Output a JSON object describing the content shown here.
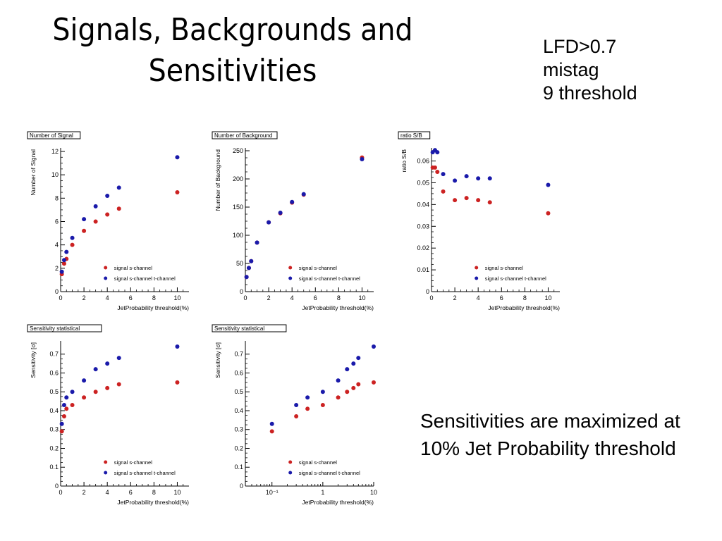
{
  "slide": {
    "title_line1": "Signals, Backgrounds and",
    "title_line2": "Sensitivities",
    "notes": [
      "LFD>0.7",
      "mistag",
      "9 threshold"
    ],
    "conclusion": "Sensitivities are maximized at 10% Jet Probability threshold"
  },
  "colors": {
    "s_channel": "#cc2222",
    "st_channel": "#1a1aaa"
  },
  "chart_data": [
    {
      "type": "scatter",
      "title": "Number of Signal",
      "xlabel": "JetProbability threshold(%)",
      "ylabel": "Number of Signal",
      "xscale": "linear",
      "xlim": [
        0,
        11
      ],
      "ylim": [
        0,
        12.3
      ],
      "xticks": [
        0,
        2,
        4,
        6,
        8,
        10
      ],
      "yticks": [
        0,
        2,
        4,
        6,
        8,
        10,
        12
      ],
      "legend_position": "bottom-right",
      "series": [
        {
          "name": "signal s-channel",
          "color": "#cc2222",
          "x": [
            0.1,
            0.3,
            0.5,
            1,
            2,
            3,
            4,
            5,
            10
          ],
          "y": [
            1.5,
            2.4,
            2.8,
            4.0,
            5.2,
            6.0,
            6.6,
            7.1,
            8.5
          ]
        },
        {
          "name": "signal s-channel t-channel",
          "color": "#1a1aaa",
          "x": [
            0.1,
            0.3,
            0.5,
            1,
            2,
            3,
            4,
            5,
            10
          ],
          "y": [
            1.7,
            2.7,
            3.4,
            4.6,
            6.2,
            7.3,
            8.2,
            8.9,
            11.5
          ]
        }
      ]
    },
    {
      "type": "scatter",
      "title": "Number of Background",
      "xlabel": "JetProbability threshold(%)",
      "ylabel": "Number of Background",
      "xscale": "linear",
      "xlim": [
        0,
        11
      ],
      "ylim": [
        0,
        255
      ],
      "xticks": [
        0,
        2,
        4,
        6,
        8,
        10
      ],
      "yticks": [
        0,
        50,
        100,
        150,
        200,
        250
      ],
      "legend_position": "bottom-right",
      "series": [
        {
          "name": "signal s-channel",
          "color": "#cc2222",
          "x": [
            0.1,
            0.3,
            0.5,
            1,
            2,
            3,
            4,
            5,
            10
          ],
          "y": [
            26,
            42,
            54,
            87,
            123,
            139,
            158,
            172,
            238
          ]
        },
        {
          "name": "signal s-channel t-channel",
          "color": "#1a1aaa",
          "x": [
            0.1,
            0.3,
            0.5,
            1,
            2,
            3,
            4,
            5,
            10
          ],
          "y": [
            26,
            42,
            54,
            87,
            123,
            140,
            159,
            173,
            235
          ]
        }
      ]
    },
    {
      "type": "scatter",
      "title": "ratio S/B",
      "xlabel": "JetProbability threshold(%)",
      "ylabel": "ratio S/B",
      "xscale": "linear",
      "xlim": [
        0,
        11
      ],
      "ylim": [
        0,
        0.066
      ],
      "xticks": [
        0,
        2,
        4,
        6,
        8,
        10
      ],
      "yticks": [
        0,
        0.01,
        0.02,
        0.03,
        0.04,
        0.05,
        0.06
      ],
      "ytick_labels": [
        "0",
        "0.01",
        "0.02",
        "0.03",
        "0.04",
        "0.05",
        "0.06"
      ],
      "legend_position": "bottom-right",
      "series": [
        {
          "name": "signal s-channel",
          "color": "#cc2222",
          "x": [
            0.1,
            0.3,
            0.5,
            1,
            2,
            3,
            4,
            5,
            10
          ],
          "y": [
            0.057,
            0.057,
            0.055,
            0.046,
            0.042,
            0.043,
            0.042,
            0.041,
            0.036
          ]
        },
        {
          "name": "signal s-channel t-channel",
          "color": "#1a1aaa",
          "x": [
            0.1,
            0.3,
            0.5,
            1,
            2,
            3,
            4,
            5,
            10
          ],
          "y": [
            0.064,
            0.065,
            0.064,
            0.054,
            0.051,
            0.053,
            0.052,
            0.052,
            0.049
          ]
        }
      ]
    },
    {
      "type": "scatter",
      "title": "Sensitivity statistical",
      "xlabel": "JetProbability threshold(%)",
      "ylabel": "Sensitivity [σ]",
      "xscale": "linear",
      "xlim": [
        0,
        11
      ],
      "ylim": [
        0,
        0.77
      ],
      "xticks": [
        0,
        2,
        4,
        6,
        8,
        10
      ],
      "yticks": [
        0,
        0.1,
        0.2,
        0.3,
        0.4,
        0.5,
        0.6,
        0.7
      ],
      "ytick_labels": [
        "0",
        "0.1",
        "0.2",
        "0.3",
        "0.4",
        "0.5",
        "0.6",
        "0.7"
      ],
      "legend_position": "bottom-right",
      "series": [
        {
          "name": "signal s-channel",
          "color": "#cc2222",
          "x": [
            0.1,
            0.3,
            0.5,
            1,
            2,
            3,
            4,
            5,
            10
          ],
          "y": [
            0.29,
            0.37,
            0.41,
            0.43,
            0.47,
            0.5,
            0.52,
            0.54,
            0.55
          ]
        },
        {
          "name": "signal s-channel t-channel",
          "color": "#1a1aaa",
          "x": [
            0.1,
            0.3,
            0.5,
            1,
            2,
            3,
            4,
            5,
            10
          ],
          "y": [
            0.33,
            0.43,
            0.47,
            0.5,
            0.56,
            0.62,
            0.65,
            0.68,
            0.74
          ]
        }
      ]
    },
    {
      "type": "scatter",
      "title": "Sensitivity statistical",
      "xlabel": "JetProbability threshold(%)",
      "ylabel": "Sensitivity [σ]",
      "xscale": "log",
      "xlim": [
        0.03,
        10
      ],
      "ylim": [
        0,
        0.77
      ],
      "xticks": [
        0.1,
        1,
        10
      ],
      "xtick_labels": [
        "10⁻¹",
        "1",
        "10"
      ],
      "yticks": [
        0,
        0.1,
        0.2,
        0.3,
        0.4,
        0.5,
        0.6,
        0.7
      ],
      "ytick_labels": [
        "0",
        "0.1",
        "0.2",
        "0.3",
        "0.4",
        "0.5",
        "0.6",
        "0.7"
      ],
      "legend_position": "bottom-right",
      "series": [
        {
          "name": "signal s-channel",
          "color": "#cc2222",
          "x": [
            0.1,
            0.3,
            0.5,
            1,
            2,
            3,
            4,
            5,
            10
          ],
          "y": [
            0.29,
            0.37,
            0.41,
            0.43,
            0.47,
            0.5,
            0.52,
            0.54,
            0.55
          ]
        },
        {
          "name": "signal s-channel t-channel",
          "color": "#1a1aaa",
          "x": [
            0.1,
            0.3,
            0.5,
            1,
            2,
            3,
            4,
            5,
            10
          ],
          "y": [
            0.33,
            0.43,
            0.47,
            0.5,
            0.56,
            0.62,
            0.65,
            0.68,
            0.74
          ]
        }
      ]
    }
  ]
}
